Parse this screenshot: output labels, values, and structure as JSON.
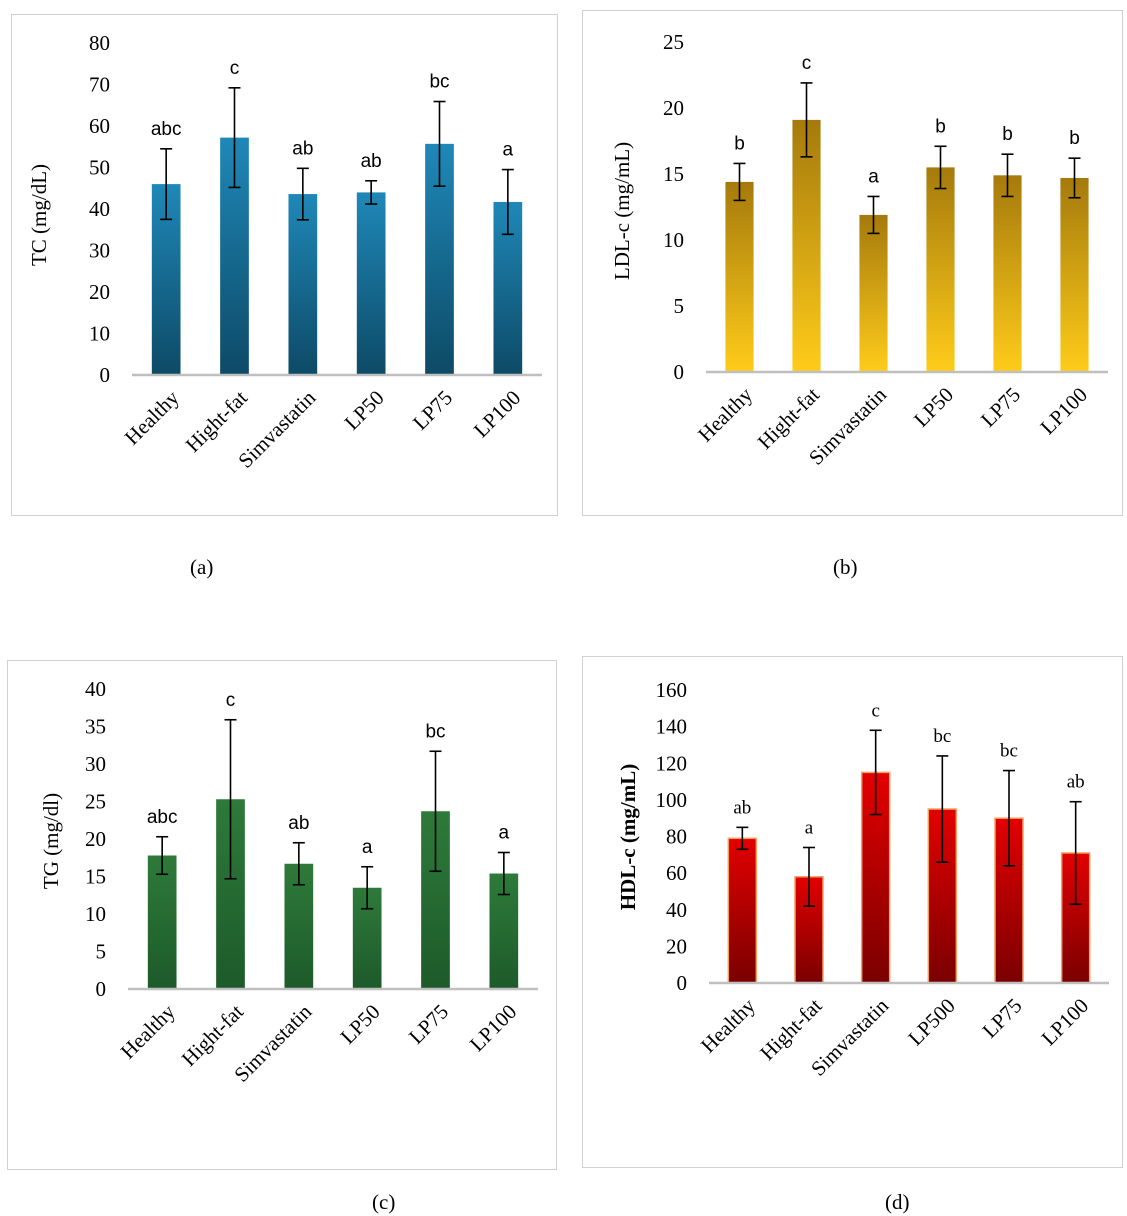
{
  "chart_data": [
    {
      "type": "bar",
      "caption": "(a)",
      "ylabel": "TC (mg/dL)",
      "ylabel_bold": false,
      "categories": [
        "Healthy",
        "Hight-fat",
        "Simvastatin",
        "LP50",
        "LP75",
        "LP100"
      ],
      "values": [
        46,
        57.2,
        43.6,
        44,
        55.7,
        41.7
      ],
      "errors": [
        8.5,
        12,
        6.2,
        2.8,
        10.2,
        7.8
      ],
      "sig_labels": [
        "abc",
        "c",
        "ab",
        "ab",
        "bc",
        "a"
      ],
      "ylim": [
        0,
        80
      ],
      "yticks": [
        "0",
        "10",
        "20",
        "30",
        "40",
        "50",
        "60",
        "70",
        "80"
      ],
      "bar_color_top": "#1f88b8",
      "bar_color_bottom": "#0d4a66"
    },
    {
      "type": "bar",
      "caption": "(b)",
      "ylabel": "LDL-c   (mg/mL)",
      "ylabel_bold": false,
      "categories": [
        "Healthy",
        "Hight-fat",
        "Simvastatin",
        "LP50",
        "LP75",
        "LP100"
      ],
      "values": [
        14.4,
        19.1,
        11.9,
        15.5,
        14.9,
        14.7
      ],
      "errors": [
        1.4,
        2.8,
        1.4,
        1.6,
        1.6,
        1.5
      ],
      "sig_labels": [
        "b",
        "c",
        "a",
        "b",
        "b",
        "b"
      ],
      "ylim": [
        0,
        25
      ],
      "yticks": [
        "0",
        "5",
        "10",
        "15",
        "20",
        "25"
      ],
      "bar_color_top": "#a57a0c",
      "bar_color_bottom": "#ffcc1a"
    },
    {
      "type": "bar",
      "caption": "(c)",
      "ylabel": "TG (mg/dl)",
      "ylabel_bold": false,
      "categories": [
        "Healthy",
        "Hight-fat",
        "Simvastatin",
        "LP50",
        "LP75",
        "LP100"
      ],
      "values": [
        17.8,
        25.3,
        16.7,
        13.5,
        23.7,
        15.4
      ],
      "errors": [
        2.5,
        10.6,
        2.8,
        2.8,
        8,
        2.8
      ],
      "sig_labels": [
        "abc",
        "c",
        "ab",
        "a",
        "bc",
        "a"
      ],
      "ylim": [
        0,
        40
      ],
      "yticks": [
        "0",
        "5",
        "10",
        "15",
        "20",
        "25",
        "30",
        "35",
        "40"
      ],
      "bar_color_top": "#2e7a3a",
      "bar_color_bottom": "#1d5a2a"
    },
    {
      "type": "bar",
      "caption": "(d)",
      "ylabel": "HDL-c (mg/mL)",
      "ylabel_bold": true,
      "categories": [
        "Healthy",
        "Hight-fat",
        "Simvastatin",
        "LP500",
        "LP75",
        "LP100"
      ],
      "values": [
        79,
        58,
        115,
        95,
        90,
        71
      ],
      "errors": [
        6,
        16,
        23,
        29,
        26,
        28
      ],
      "sig_labels": [
        "ab",
        "a",
        "c",
        "bc",
        "bc",
        "ab"
      ],
      "ylim": [
        0,
        160
      ],
      "yticks": [
        "0",
        "20",
        "40",
        "60",
        "80",
        "100",
        "120",
        "140",
        "160"
      ],
      "bar_color_top": "#e30000",
      "bar_color_bottom": "#7a0000",
      "bar_stroke": "#f0a060"
    }
  ]
}
